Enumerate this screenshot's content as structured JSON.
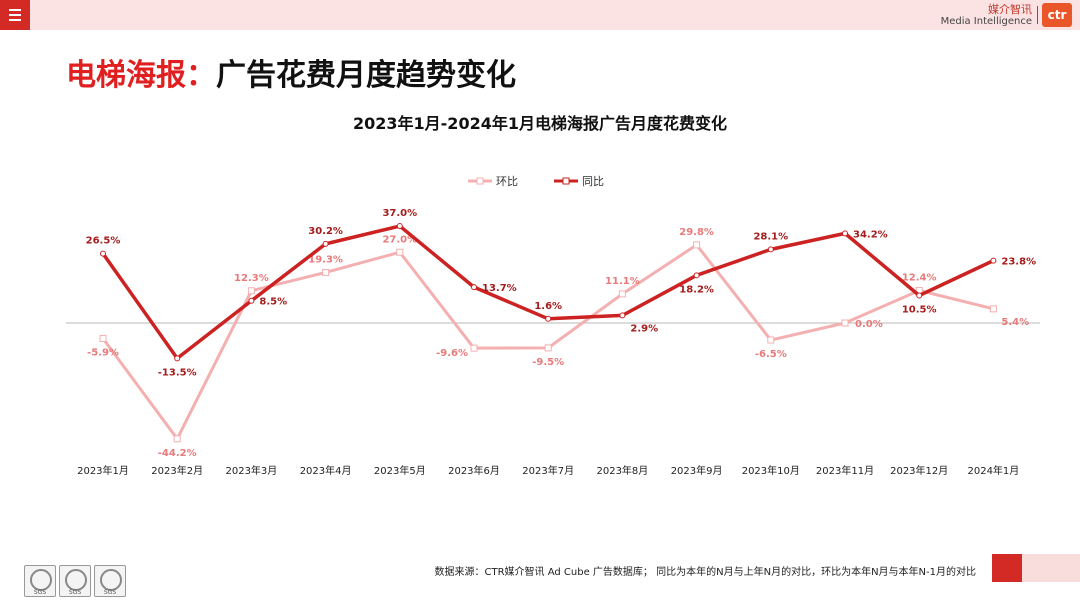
{
  "header": {
    "brand_cn": "媒介智讯",
    "brand_en": "Media Intelligence",
    "logo_text": "ctr",
    "menu_icon": "hamburger-menu-icon"
  },
  "page": {
    "title_red": "电梯海报：",
    "title_black": "广告花费月度趋势变化"
  },
  "chart_data": {
    "type": "line",
    "title": "2023年1月-2024年1月电梯海报广告月度花费变化",
    "categories": [
      "2023年1月",
      "2023年2月",
      "2023年3月",
      "2023年4月",
      "2023年5月",
      "2023年6月",
      "2023年7月",
      "2023年8月",
      "2023年9月",
      "2023年10月",
      "2023年11月",
      "2023年12月",
      "2024年1月"
    ],
    "series": [
      {
        "name": "环比",
        "color": "#f4b0b0",
        "label_color": "#e87a7a",
        "values": [
          -5.9,
          -44.2,
          12.3,
          19.3,
          27.0,
          -9.6,
          -9.5,
          11.1,
          29.8,
          -6.5,
          0.0,
          12.4,
          5.4
        ],
        "labels": [
          "-5.9%",
          "-44.2%",
          "12.3%",
          "19.3%",
          "27.0%",
          "-9.6%",
          "-9.5%",
          "11.1%",
          "29.8%",
          "-6.5%",
          "0.0%",
          "12.4%",
          "5.4%"
        ]
      },
      {
        "name": "同比",
        "color": "#cc2222",
        "label_color": "#a51c1c",
        "values": [
          26.5,
          -13.5,
          8.5,
          30.2,
          37.0,
          13.7,
          1.6,
          2.9,
          18.2,
          28.1,
          34.2,
          10.5,
          23.8
        ],
        "labels": [
          "26.5%",
          "-13.5%",
          "8.5%",
          "30.2%",
          "37.0%",
          "13.7%",
          "1.6%",
          "2.9%",
          "18.2%",
          "28.1%",
          "34.2%",
          "10.5%",
          "23.8%"
        ]
      }
    ],
    "ylim": [
      -50,
      40
    ],
    "legend_position": "top-center",
    "grid": false
  },
  "footer": {
    "source_note": "数据来源：CTR媒介智讯 Ad Cube 广告数据库； 同比为本年的N月与上年N月的对比，环比为本年N月与本年N-1月的对比",
    "badges": [
      "SGS",
      "SGS",
      "SGS"
    ]
  }
}
